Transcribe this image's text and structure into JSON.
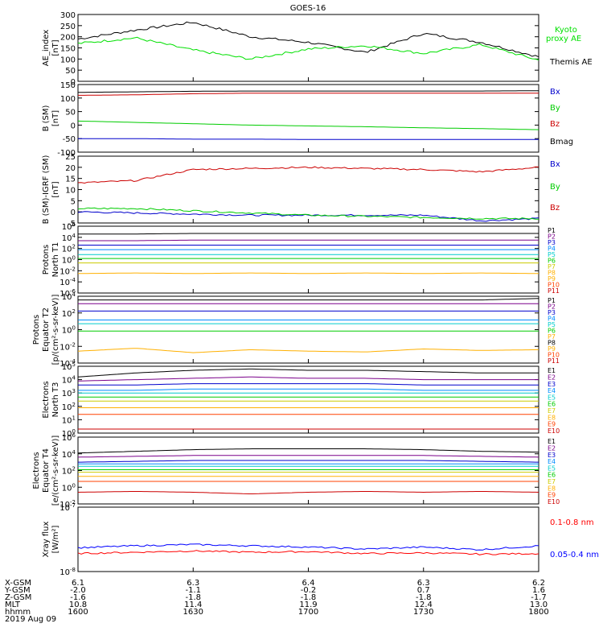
{
  "title": "GOES-16",
  "chart_data": [
    {
      "type": "line",
      "ylabel": "AE_index\n[nT]",
      "ylim": [
        0,
        300
      ],
      "yticks": [
        "300",
        "250",
        "200",
        "150",
        "100",
        "50",
        "0"
      ],
      "x": [
        0,
        15,
        30,
        45,
        60,
        75,
        90,
        105,
        120
      ],
      "series": [
        {
          "name": "Themis AE",
          "color": "#000000",
          "values": [
            190,
            230,
            265,
            200,
            175,
            130,
            215,
            175,
            110
          ]
        },
        {
          "name": "Kyoto proxy AE",
          "color": "#00e000",
          "values": [
            170,
            195,
            140,
            100,
            145,
            160,
            125,
            165,
            95
          ]
        }
      ],
      "legend": [
        "Kyoto\nproxy AE",
        "Themis AE"
      ]
    },
    {
      "type": "line",
      "ylabel": "B (SM)\n[nT]",
      "ylim": [
        -100,
        150
      ],
      "yticks": [
        "150",
        "100",
        "50",
        "0",
        "-50",
        "-100"
      ],
      "series": [
        {
          "name": "Bx",
          "color": "#0000cc",
          "values": [
            -50,
            -50,
            -52,
            -52,
            -53,
            -53,
            -53,
            -53,
            -53
          ]
        },
        {
          "name": "By",
          "color": "#00cc00",
          "values": [
            15,
            10,
            5,
            0,
            -3,
            -6,
            -10,
            -13,
            -17
          ]
        },
        {
          "name": "Bz",
          "color": "#cc0000",
          "values": [
            110,
            112,
            116,
            118,
            118,
            118,
            118,
            118,
            118
          ]
        },
        {
          "name": "Bmag",
          "color": "#000000",
          "values": [
            121,
            123,
            125,
            126,
            126,
            126,
            126,
            126,
            127
          ]
        }
      ],
      "legend": [
        "Bx",
        "By",
        "Bz",
        "Bmag"
      ]
    },
    {
      "type": "line",
      "ylabel": "B (SM)-IGRF (SM)\n[nT]",
      "ylim": [
        -5,
        25
      ],
      "yticks": [
        "25",
        "20",
        "15",
        "10",
        "5",
        "0",
        "-5"
      ],
      "series": [
        {
          "name": "Bx",
          "color": "#0000cc",
          "values": [
            0,
            -0.5,
            -1,
            -1.5,
            -1.5,
            -1.5,
            -1.5,
            -4,
            -3
          ]
        },
        {
          "name": "By",
          "color": "#00cc00",
          "values": [
            1.5,
            1.5,
            0.5,
            -0.5,
            -1.5,
            -2,
            -2.5,
            -3,
            -3
          ]
        },
        {
          "name": "Bz",
          "color": "#cc0000",
          "values": [
            13,
            14,
            19,
            19.5,
            20,
            19.5,
            19,
            18,
            20
          ]
        }
      ],
      "legend": [
        "Bx",
        "By",
        "Bz"
      ]
    },
    {
      "type": "line",
      "ylabel": "Protons\nNorth T1",
      "ylim": [
        -6,
        6
      ],
      "yticks": [
        "10^6",
        "10^4",
        "10^2",
        "10^0",
        "10^-2",
        "10^-4",
        "10^-6"
      ],
      "series": [
        {
          "name": "P1",
          "color": "#000000",
          "values": [
            4.6,
            4.6,
            4.7,
            4.7,
            4.7,
            4.7,
            4.7,
            4.7,
            4.7
          ]
        },
        {
          "name": "P2",
          "color": "#7a008a",
          "values": [
            3.4,
            3.4,
            3.5,
            3.5,
            3.5,
            3.5,
            3.5,
            3.5,
            3.5
          ]
        },
        {
          "name": "P3",
          "color": "#0000cc",
          "values": [
            2.6,
            2.6,
            2.6,
            2.6,
            2.6,
            2.6,
            2.6,
            2.6,
            2.6
          ]
        },
        {
          "name": "P4",
          "color": "#008cff",
          "values": [
            1.8,
            1.8,
            1.8,
            1.8,
            1.8,
            1.8,
            1.8,
            1.8,
            1.8
          ]
        },
        {
          "name": "P5",
          "color": "#00cccc",
          "values": [
            0.9,
            0.9,
            0.9,
            0.9,
            0.9,
            0.9,
            0.9,
            0.9,
            0.9
          ]
        },
        {
          "name": "P6",
          "color": "#00cc00",
          "values": [
            0.2,
            0.2,
            0.2,
            0.2,
            0.2,
            0.2,
            0.2,
            0.2,
            0.2
          ]
        },
        {
          "name": "P7",
          "color": "#cccc00",
          "values": [
            -0.6,
            -0.6,
            -0.6,
            -0.6,
            -0.6,
            -0.6,
            -0.6,
            -0.6,
            -0.6
          ]
        },
        {
          "name": "P8",
          "color": "#ffb000",
          "values": [
            -2.5,
            -2.4,
            -2.5,
            -2.4,
            -2.5,
            -2.4,
            -2.5,
            -2.4,
            -2.5
          ]
        }
      ],
      "legend": [
        "P1",
        "P2",
        "P3",
        "P4",
        "P5",
        "P6",
        "P7",
        "P8",
        "P9",
        "P10",
        "P11"
      ]
    },
    {
      "type": "line",
      "ylabel": "Protons\nEquator T2\n[p/(cm²-s-sr-keV)]",
      "ylim": [
        -5,
        4
      ],
      "yticks": [
        "10^4",
        "10^2",
        "10^0",
        "10^-2",
        "10^-4"
      ],
      "series": [
        {
          "name": "P1",
          "color": "#000000",
          "values": [
            3.5,
            3.5,
            3.5,
            3.5,
            3.5,
            3.5,
            3.5,
            3.5,
            3.7
          ]
        },
        {
          "name": "P2",
          "color": "#7a008a",
          "values": [
            3.0,
            3.0,
            3.0,
            3.0,
            3.0,
            3.0,
            3.0,
            3.0,
            3.0
          ]
        },
        {
          "name": "P3",
          "color": "#0000cc",
          "values": [
            2.0,
            2.0,
            2.0,
            2.0,
            2.0,
            2.0,
            2.0,
            2.0,
            2.0
          ]
        },
        {
          "name": "P4",
          "color": "#008cff",
          "values": [
            0.8,
            0.8,
            0.8,
            0.8,
            0.8,
            0.8,
            0.8,
            0.8,
            0.8
          ]
        },
        {
          "name": "P5",
          "color": "#00cccc",
          "values": [
            0.3,
            0.3,
            0.3,
            0.3,
            0.3,
            0.3,
            0.3,
            0.3,
            0.3
          ]
        },
        {
          "name": "P6",
          "color": "#00cc00",
          "values": [
            -0.7,
            -0.7,
            -0.7,
            -0.7,
            -0.7,
            -0.7,
            -0.7,
            -0.7,
            -0.7
          ]
        },
        {
          "name": "P7",
          "color": "#ffb000",
          "values": [
            -3.4,
            -3.0,
            -3.6,
            -3.2,
            -3.4,
            -3.5,
            -3.1,
            -3.3,
            -3.2
          ]
        }
      ],
      "legend": [
        "P1",
        "P2",
        "P3",
        "P4",
        "P5",
        "P6",
        "P7",
        "P8",
        "P9",
        "P10",
        "P11"
      ]
    },
    {
      "type": "line",
      "ylabel": "Electrons\nNorth T3",
      "ylim": [
        0,
        5
      ],
      "yticks": [
        "10^5",
        "10^4",
        "10^3",
        "10^2",
        "10^1",
        "10^0"
      ],
      "series": [
        {
          "name": "E1",
          "color": "#000000",
          "values": [
            4.2,
            4.5,
            4.7,
            4.8,
            4.7,
            4.7,
            4.6,
            4.5,
            4.5
          ]
        },
        {
          "name": "E2",
          "color": "#7a008a",
          "values": [
            3.9,
            4.0,
            4.1,
            4.2,
            4.1,
            4.1,
            4.0,
            4.0,
            4.0
          ]
        },
        {
          "name": "E3",
          "color": "#0000cc",
          "values": [
            3.6,
            3.6,
            3.7,
            3.7,
            3.7,
            3.7,
            3.6,
            3.6,
            3.6
          ]
        },
        {
          "name": "E4",
          "color": "#008cff",
          "values": [
            3.2,
            3.2,
            3.3,
            3.3,
            3.3,
            3.3,
            3.2,
            3.2,
            3.2
          ]
        },
        {
          "name": "E5",
          "color": "#00cccc",
          "values": [
            3.0,
            3.0,
            3.0,
            3.0,
            3.0,
            3.0,
            3.0,
            3.0,
            3.0
          ]
        },
        {
          "name": "E6",
          "color": "#00cc00",
          "values": [
            2.7,
            2.7,
            2.7,
            2.7,
            2.7,
            2.7,
            2.7,
            2.7,
            2.7
          ]
        },
        {
          "name": "E7",
          "color": "#cccc00",
          "values": [
            2.4,
            2.4,
            2.4,
            2.4,
            2.4,
            2.4,
            2.4,
            2.4,
            2.4
          ]
        },
        {
          "name": "E8",
          "color": "#ffb000",
          "values": [
            1.9,
            1.9,
            1.9,
            1.9,
            1.9,
            1.9,
            1.9,
            1.9,
            1.9
          ]
        },
        {
          "name": "E9",
          "color": "#ff4000",
          "values": [
            1.4,
            1.4,
            1.4,
            1.4,
            1.4,
            1.4,
            1.4,
            1.4,
            1.4
          ]
        },
        {
          "name": "E10",
          "color": "#cc0000",
          "values": [
            0.3,
            0.3,
            0.3,
            0.3,
            0.3,
            0.3,
            0.3,
            0.3,
            0.3
          ]
        }
      ],
      "legend": [
        "E1",
        "E2",
        "E3",
        "E4",
        "E5",
        "E6",
        "E7",
        "E8",
        "E9",
        "E10"
      ]
    },
    {
      "type": "line",
      "ylabel": "Electrons\nEquator T4\n[e/(cm²-s-sr-keV)]",
      "ylim": [
        -2,
        6
      ],
      "yticks": [
        "10^6",
        "10^4",
        "10^2",
        "10^0",
        "10^-2"
      ],
      "series": [
        {
          "name": "E1",
          "color": "#000000",
          "values": [
            4.1,
            4.3,
            4.5,
            4.6,
            4.6,
            4.6,
            4.5,
            4.3,
            4.2
          ]
        },
        {
          "name": "E2",
          "color": "#7a008a",
          "values": [
            3.6,
            3.7,
            3.8,
            3.8,
            3.8,
            3.8,
            3.8,
            3.7,
            3.6
          ]
        },
        {
          "name": "E3",
          "color": "#0000cc",
          "values": [
            3.0,
            3.1,
            3.2,
            3.2,
            3.2,
            3.2,
            3.2,
            3.1,
            3.0
          ]
        },
        {
          "name": "E4",
          "color": "#008cff",
          "values": [
            2.8,
            2.8,
            2.8,
            2.8,
            2.8,
            2.8,
            2.8,
            2.8,
            2.8
          ]
        },
        {
          "name": "E5",
          "color": "#00cccc",
          "values": [
            2.5,
            2.5,
            2.5,
            2.5,
            2.5,
            2.5,
            2.5,
            2.5,
            2.5
          ]
        },
        {
          "name": "E6",
          "color": "#00cc00",
          "values": [
            2.1,
            2.1,
            2.1,
            2.1,
            2.1,
            2.1,
            2.1,
            2.1,
            2.1
          ]
        },
        {
          "name": "E7",
          "color": "#cccc00",
          "values": [
            1.8,
            1.8,
            1.8,
            1.8,
            1.8,
            1.8,
            1.8,
            1.8,
            1.8
          ]
        },
        {
          "name": "E8",
          "color": "#ffb000",
          "values": [
            1.3,
            1.3,
            1.3,
            1.3,
            1.3,
            1.3,
            1.3,
            1.3,
            1.3
          ]
        },
        {
          "name": "E9",
          "color": "#ff4000",
          "values": [
            0.7,
            0.7,
            0.7,
            0.7,
            0.7,
            0.7,
            0.7,
            0.7,
            0.7
          ]
        },
        {
          "name": "E10",
          "color": "#cc0000",
          "values": [
            -0.6,
            -0.5,
            -0.6,
            -0.8,
            -0.6,
            -0.5,
            -0.6,
            -0.5,
            -0.6
          ]
        }
      ],
      "legend": [
        "E1",
        "E2",
        "E3",
        "E4",
        "E5",
        "E6",
        "E7",
        "E8",
        "E9",
        "E10"
      ]
    },
    {
      "type": "line",
      "ylabel": "Xray flux\n[W/m²]",
      "ylim": [
        -8,
        -7
      ],
      "yticks": [
        "10^-7",
        "10^-8"
      ],
      "series": [
        {
          "name": "0.1-0.8 nm",
          "color": "#ff0000",
          "values": [
            -7.72,
            -7.7,
            -7.68,
            -7.7,
            -7.69,
            -7.72,
            -7.71,
            -7.73,
            -7.72
          ]
        },
        {
          "name": "0.05-0.4 nm",
          "color": "#0000ff",
          "values": [
            -7.63,
            -7.6,
            -7.58,
            -7.6,
            -7.62,
            -7.65,
            -7.62,
            -7.66,
            -7.6
          ]
        }
      ],
      "legend": [
        "0.1-0.8 nm",
        "0.05-0.4 nm"
      ]
    }
  ],
  "xaxis": {
    "row_labels": [
      "X-GSM",
      "Y-GSM",
      "Z-GSM",
      "MLT",
      "hhmm"
    ],
    "date": "2019 Aug 09",
    "columns": [
      {
        "X-GSM": "6.1",
        "Y-GSM": "-2.0",
        "Z-GSM": "-1.6",
        "MLT": "10.8",
        "hhmm": "1600"
      },
      {
        "X-GSM": "6.3",
        "Y-GSM": "-1.1",
        "Z-GSM": "-1.8",
        "MLT": "11.4",
        "hhmm": "1630"
      },
      {
        "X-GSM": "6.4",
        "Y-GSM": "-0.2",
        "Z-GSM": "-1.8",
        "MLT": "11.9",
        "hhmm": "1700"
      },
      {
        "X-GSM": "6.3",
        "Y-GSM": "0.7",
        "Z-GSM": "-1.8",
        "MLT": "12.4",
        "hhmm": "1730"
      },
      {
        "X-GSM": "6.2",
        "Y-GSM": "1.6",
        "Z-GSM": "-1.7",
        "MLT": "13.0",
        "hhmm": "1800"
      }
    ]
  }
}
